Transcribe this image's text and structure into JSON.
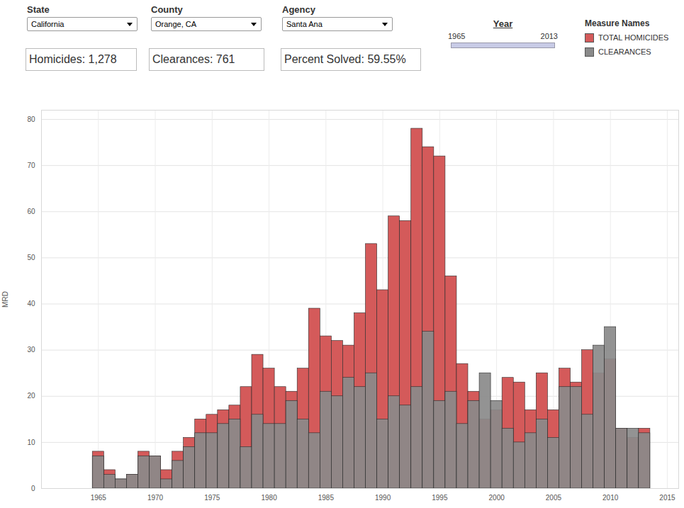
{
  "chart_data": {
    "type": "bar",
    "filters": [
      {
        "label": "State",
        "value": "California"
      },
      {
        "label": "County",
        "value": "Orange, CA"
      },
      {
        "label": "Agency",
        "value": "Santa Ana"
      }
    ],
    "summary": [
      "Homicides: 1,278",
      "Clearances: 761",
      "Percent Solved: 59.55%"
    ],
    "slider": {
      "label": "Year",
      "min": 1965,
      "max": 2013
    },
    "legend_title": "Measure Names",
    "legend": "top-right",
    "stacked": false,
    "grid": true,
    "y_label": "MRD",
    "x": [
      1965,
      1966,
      1967,
      1968,
      1969,
      1970,
      1971,
      1972,
      1973,
      1974,
      1975,
      1976,
      1977,
      1978,
      1979,
      1980,
      1981,
      1982,
      1983,
      1984,
      1985,
      1986,
      1987,
      1988,
      1989,
      1990,
      1991,
      1992,
      1993,
      1994,
      1995,
      1996,
      1997,
      1998,
      1999,
      2000,
      2001,
      2002,
      2003,
      2004,
      2005,
      2006,
      2007,
      2008,
      2009,
      2010,
      2011,
      2012,
      2013
    ],
    "series": [
      {
        "name": "TOTAL HOMICIDES",
        "color": "#d45a5a",
        "values": [
          8,
          4,
          2,
          3,
          8,
          7,
          4,
          8,
          11,
          15,
          16,
          17,
          18,
          22,
          29,
          26,
          22,
          21,
          26,
          39,
          33,
          32,
          31,
          38,
          53,
          43,
          59,
          58,
          78,
          74,
          72,
          46,
          27,
          21,
          15,
          17,
          24,
          23,
          17,
          25,
          17,
          26,
          23,
          30,
          25,
          28,
          13,
          11,
          13
        ]
      },
      {
        "name": "CLEARANCES",
        "color": "#8a8a8a",
        "values": [
          7,
          3,
          2,
          3,
          7,
          7,
          2,
          6,
          9,
          12,
          12,
          14,
          15,
          9,
          16,
          14,
          14,
          19,
          15,
          12,
          21,
          20,
          24,
          22,
          25,
          15,
          20,
          18,
          22,
          34,
          19,
          21,
          14,
          19,
          25,
          19,
          13,
          10,
          12,
          15,
          11,
          22,
          22,
          16,
          31,
          35,
          13,
          13,
          12
        ]
      }
    ],
    "xlim": [
      1960,
      2016
    ],
    "xticks": [
      1965,
      1970,
      1975,
      1980,
      1985,
      1990,
      1995,
      2000,
      2005,
      2010,
      2015
    ],
    "ylim": [
      0,
      82
    ],
    "yticks": [
      0,
      10,
      20,
      30,
      40,
      50,
      60,
      70,
      80
    ]
  }
}
